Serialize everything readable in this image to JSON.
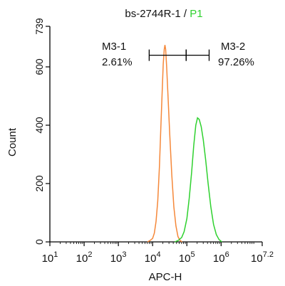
{
  "chart_data": {
    "type": "line",
    "title": {
      "sample": "bs-2744R-1",
      "separator": " / ",
      "gate": "P1"
    },
    "xlabel": "APC-H",
    "ylabel": "Count",
    "x_scale": "log",
    "xlim": [
      1,
      7.2
    ],
    "ylim": [
      0,
      739
    ],
    "x_ticks": [
      {
        "value": 1,
        "base": "10",
        "exp": "1"
      },
      {
        "value": 2,
        "base": "10",
        "exp": "2"
      },
      {
        "value": 3,
        "base": "10",
        "exp": "3"
      },
      {
        "value": 4,
        "base": "10",
        "exp": "4"
      },
      {
        "value": 5,
        "base": "10",
        "exp": "5"
      },
      {
        "value": 6,
        "base": "10",
        "exp": "6"
      },
      {
        "value": 7.2,
        "base": "10",
        "exp": "7.2"
      }
    ],
    "y_ticks": [
      {
        "value": 0,
        "label": "0"
      },
      {
        "value": 200,
        "label": "200"
      },
      {
        "value": 400,
        "label": "400"
      },
      {
        "value": 600,
        "label": "600"
      },
      {
        "value": 739,
        "label": "739"
      }
    ],
    "series": [
      {
        "color": "#f5883a",
        "points": [
          [
            3.85,
            0
          ],
          [
            3.93,
            5
          ],
          [
            4.0,
            12
          ],
          [
            4.05,
            30
          ],
          [
            4.1,
            70
          ],
          [
            4.15,
            140
          ],
          [
            4.2,
            260
          ],
          [
            4.24,
            390
          ],
          [
            4.28,
            520
          ],
          [
            4.31,
            610
          ],
          [
            4.34,
            660
          ],
          [
            4.36,
            675
          ],
          [
            4.38,
            660
          ],
          [
            4.41,
            600
          ],
          [
            4.45,
            500
          ],
          [
            4.5,
            370
          ],
          [
            4.56,
            230
          ],
          [
            4.62,
            120
          ],
          [
            4.68,
            55
          ],
          [
            4.74,
            18
          ],
          [
            4.8,
            5
          ],
          [
            4.86,
            0
          ]
        ]
      },
      {
        "color": "#2fd12f",
        "points": [
          [
            4.65,
            0
          ],
          [
            4.75,
            5
          ],
          [
            4.85,
            15
          ],
          [
            4.92,
            35
          ],
          [
            5.0,
            80
          ],
          [
            5.07,
            150
          ],
          [
            5.14,
            240
          ],
          [
            5.2,
            330
          ],
          [
            5.26,
            400
          ],
          [
            5.31,
            425
          ],
          [
            5.36,
            420
          ],
          [
            5.42,
            395
          ],
          [
            5.48,
            350
          ],
          [
            5.55,
            280
          ],
          [
            5.62,
            200
          ],
          [
            5.7,
            120
          ],
          [
            5.78,
            60
          ],
          [
            5.86,
            25
          ],
          [
            5.94,
            8
          ],
          [
            6.02,
            0
          ]
        ]
      }
    ],
    "markers": [
      {
        "name": "M3-1",
        "percent": "2.61%",
        "range": [
          3.9,
          4.98
        ]
      },
      {
        "name": "M3-2",
        "percent": "97.26%",
        "range": [
          4.98,
          5.65
        ]
      }
    ],
    "marker_y": 640,
    "colors": {
      "axis": "#000000",
      "title_gate": "#2fd12f"
    }
  }
}
